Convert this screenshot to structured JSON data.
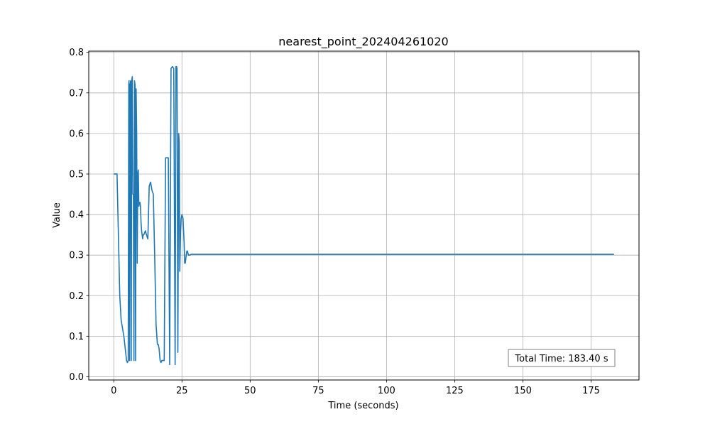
{
  "chart_data": {
    "type": "line",
    "title": "nearest_point_202404261020",
    "xlabel": "Time (seconds)",
    "ylabel": "Value",
    "xlim": [
      -9.17,
      192.57
    ],
    "ylim": [
      -0.008,
      0.803
    ],
    "xticks": [
      0,
      25,
      50,
      75,
      100,
      125,
      150,
      175
    ],
    "xtick_labels": [
      "0",
      "25",
      "50",
      "75",
      "100",
      "125",
      "150",
      "175"
    ],
    "yticks": [
      0.0,
      0.1,
      0.2,
      0.3,
      0.4,
      0.5,
      0.6,
      0.7,
      0.8
    ],
    "ytick_labels": [
      "0.0",
      "0.1",
      "0.2",
      "0.3",
      "0.4",
      "0.5",
      "0.6",
      "0.7",
      "0.8"
    ],
    "grid": true,
    "annotation": "Total Time: 183.40 s",
    "annotation_position": "bottom-right",
    "line_color": "#1f77b4",
    "series": [
      {
        "x": [
          0,
          0.5,
          1.2,
          1.7,
          2.2,
          2.7,
          3.2,
          3.7,
          4.2,
          4.7,
          5.0,
          5.3,
          5.5,
          5.6,
          5.8,
          6.0,
          6.2,
          6.4,
          6.6,
          6.8,
          7.0,
          7.2,
          7.4,
          7.6,
          7.8,
          8.0,
          8.2,
          8.4,
          8.6,
          8.8,
          9.0,
          9.2,
          9.4,
          9.6,
          9.8,
          10.0,
          10.2,
          10.4,
          10.6,
          10.8,
          11.0,
          11.3,
          11.6,
          12.0,
          12.5,
          13.0,
          13.5,
          14.0,
          14.5,
          15.0,
          15.5,
          16.0,
          16.3,
          16.6,
          17.0,
          17.3,
          17.6,
          18.0,
          18.5,
          19.0,
          19.5,
          20.0,
          20.5,
          21.0,
          21.5,
          22.0,
          22.5,
          22.8,
          23.0,
          23.2,
          23.5,
          23.8,
          24.0,
          24.2,
          24.5,
          24.7,
          25.0,
          25.4,
          25.8,
          26.0,
          26.2,
          26.4,
          26.6,
          26.8,
          27.0,
          27.2,
          27.4,
          27.6,
          27.8,
          28.0,
          28.3,
          28.6,
          29.0,
          29.5,
          30.0,
          30.5,
          31.0,
          31.5,
          32.0,
          33.0,
          35.0,
          183.4
        ],
        "y": [
          0.5,
          0.5,
          0.5,
          0.35,
          0.2,
          0.14,
          0.12,
          0.1,
          0.07,
          0.04,
          0.035,
          0.04,
          0.72,
          0.73,
          0.04,
          0.72,
          0.73,
          0.04,
          0.73,
          0.74,
          0.45,
          0.45,
          0.04,
          0.73,
          0.72,
          0.04,
          0.71,
          0.6,
          0.28,
          0.5,
          0.51,
          0.42,
          0.43,
          0.43,
          0.42,
          0.38,
          0.36,
          0.35,
          0.34,
          0.35,
          0.35,
          0.355,
          0.36,
          0.35,
          0.34,
          0.47,
          0.48,
          0.46,
          0.45,
          0.3,
          0.13,
          0.08,
          0.08,
          0.07,
          0.04,
          0.035,
          0.04,
          0.04,
          0.04,
          0.54,
          0.54,
          0.54,
          0.03,
          0.76,
          0.765,
          0.76,
          0.03,
          0.765,
          0.765,
          0.76,
          0.06,
          0.6,
          0.58,
          0.26,
          0.36,
          0.39,
          0.4,
          0.39,
          0.33,
          0.28,
          0.28,
          0.29,
          0.3,
          0.31,
          0.31,
          0.305,
          0.3,
          0.3,
          0.3,
          0.3,
          0.302,
          0.302,
          0.302,
          0.302,
          0.302,
          0.302,
          0.302,
          0.302,
          0.302,
          0.302,
          0.302,
          0.302
        ]
      }
    ]
  }
}
